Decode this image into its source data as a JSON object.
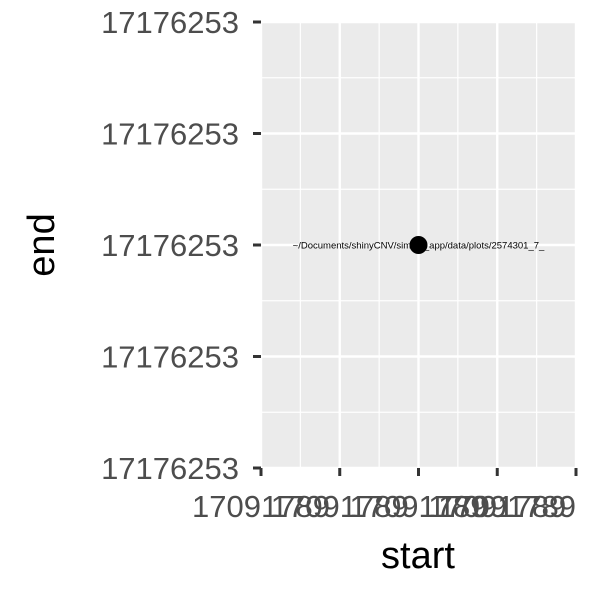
{
  "chart_data": {
    "type": "scatter",
    "title": "",
    "xlabel": "start",
    "ylabel": "end",
    "x_ticks": [
      "17091789",
      "17091789",
      "17091789",
      "17091789",
      "17091789"
    ],
    "y_ticks": [
      "17176253",
      "17176253",
      "17176253",
      "17176253",
      "17176253"
    ],
    "points": [
      {
        "x": 17091789,
        "y": 17176253,
        "label": "~/Documents/shinyCNV/simple_app/data/plots/2574301_7_"
      }
    ],
    "grid": true,
    "legend": "none",
    "colors": {
      "panel": "#ebebeb",
      "grid": "#ffffff",
      "point": "#000000",
      "tick_text": "#4d4d4d",
      "tick_mark": "#333333"
    }
  }
}
